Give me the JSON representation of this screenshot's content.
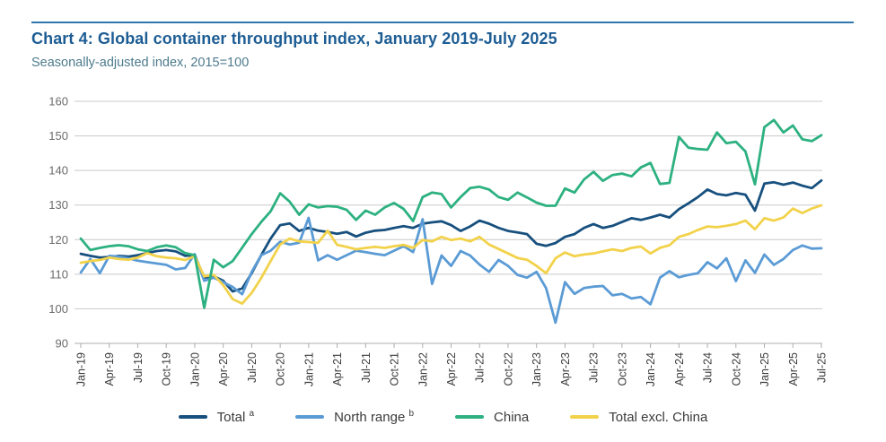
{
  "header": {
    "title": "Chart 4: Global container throughput index, January 2019-July 2025",
    "subtitle": "Seasonally-adjusted index, 2015=100"
  },
  "colors": {
    "title_text": "#1d5d94",
    "subtitle_text": "#4e7b8d",
    "top_rule": "#2f77ad",
    "grid_line": "#c9c9c9",
    "axis_line": "#adadad",
    "y_tick_text": "#6b6b6b",
    "x_tick_text": "#3c3c3c",
    "total": "#17507e",
    "north_range": "#5b9bd5",
    "china": "#2db181",
    "total_excl_china": "#f2d24b"
  },
  "chart_data": {
    "type": "line",
    "title": "Chart 4: Global container throughput index, January 2019-July 2025",
    "subtitle": "Seasonally-adjusted index, 2015=100",
    "x_unit": "monthly, Jan-2019 to Jul-2025",
    "x_tick_labels": [
      "Jan-19",
      "Apr-19",
      "Jul-19",
      "Oct-19",
      "Jan-20",
      "Apr-20",
      "Jul-20",
      "Oct-20",
      "Jan-21",
      "Apr-21",
      "Jul-21",
      "Oct-21",
      "Jan-22",
      "Apr-22",
      "Jul-22",
      "Oct-22",
      "Jan-23",
      "Apr-23",
      "Jul-23",
      "Oct-23",
      "Jan-24",
      "Apr-24",
      "Jul-24",
      "Oct-24",
      "Jan-25",
      "Apr-25",
      "Jul-25"
    ],
    "y_tick_labels": [
      90,
      100,
      110,
      120,
      130,
      140,
      150,
      160
    ],
    "ylim": [
      90,
      160
    ],
    "grid": "horizontal",
    "legend_position": "bottom",
    "series": [
      {
        "name": "Total",
        "sup": "a",
        "color": "#17507e",
        "values": [
          115.9,
          115.3,
          114.8,
          115.0,
          115.3,
          115.1,
          115.5,
          116.1,
          116.7,
          117.0,
          116.6,
          115.3,
          115.5,
          109.0,
          109.4,
          108.1,
          105.0,
          105.9,
          110.3,
          115.5,
          120.3,
          124.2,
          124.7,
          122.5,
          123.4,
          122.6,
          122.2,
          121.7,
          122.2,
          120.9,
          122.0,
          122.6,
          122.8,
          123.4,
          123.9,
          123.4,
          124.6,
          125.0,
          125.3,
          124.2,
          122.5,
          123.8,
          125.5,
          124.6,
          123.4,
          122.5,
          122.1,
          121.6,
          118.8,
          118.2,
          119.0,
          120.8,
          121.6,
          123.4,
          124.5,
          123.4,
          124.0,
          125.1,
          126.2,
          125.7,
          126.4,
          127.2,
          126.4,
          128.8,
          130.5,
          132.3,
          134.5,
          133.2,
          132.8,
          133.5,
          133.0,
          128.4,
          136.2,
          136.6,
          135.9,
          136.5,
          135.6,
          134.9,
          137.1
        ]
      },
      {
        "name": "North range",
        "sup": "b",
        "color": "#5b9bd5",
        "values": [
          110.5,
          114.4,
          110.3,
          115.3,
          115.1,
          114.6,
          113.9,
          113.5,
          113.1,
          112.7,
          111.4,
          111.8,
          115.8,
          108.1,
          109.0,
          107.7,
          106.3,
          104.2,
          110.7,
          115.5,
          116.8,
          119.4,
          118.6,
          119.1,
          126.3,
          114.0,
          115.5,
          114.2,
          115.5,
          116.8,
          116.4,
          115.9,
          115.5,
          116.8,
          118.1,
          116.4,
          125.9,
          107.2,
          115.4,
          112.4,
          116.7,
          115.4,
          112.8,
          110.7,
          114.1,
          112.4,
          109.8,
          109.0,
          110.7,
          106.0,
          96.0,
          107.7,
          104.3,
          106.0,
          106.4,
          106.6,
          103.9,
          104.3,
          103.0,
          103.4,
          101.3,
          109.0,
          110.9,
          109.1,
          109.8,
          110.3,
          113.5,
          111.7,
          114.6,
          108.0,
          114.0,
          110.4,
          115.7,
          112.7,
          114.4,
          117.0,
          118.3,
          117.4,
          117.5
        ]
      },
      {
        "name": "China",
        "sup": "",
        "color": "#2db181",
        "values": [
          120.3,
          117.0,
          117.6,
          118.1,
          118.4,
          118.1,
          117.2,
          116.7,
          117.8,
          118.3,
          117.8,
          116.1,
          115.5,
          100.3,
          114.2,
          112.0,
          113.8,
          117.7,
          121.6,
          125.1,
          128.2,
          133.4,
          131.0,
          127.2,
          130.2,
          129.3,
          129.7,
          129.5,
          128.6,
          125.7,
          128.4,
          127.2,
          129.3,
          130.6,
          128.9,
          125.4,
          132.3,
          133.6,
          133.2,
          129.3,
          132.3,
          134.9,
          135.3,
          134.5,
          132.3,
          131.5,
          133.6,
          132.2,
          130.7,
          129.8,
          129.8,
          134.8,
          133.6,
          137.4,
          139.6,
          137.0,
          138.7,
          139.1,
          138.3,
          140.9,
          142.2,
          136.1,
          136.4,
          149.7,
          146.6,
          146.2,
          146.0,
          151.0,
          147.9,
          148.3,
          145.5,
          136.0,
          152.5,
          154.6,
          151.0,
          153.0,
          149.0,
          148.5,
          150.2
        ]
      },
      {
        "name": "Total excl. China",
        "sup": "",
        "color": "#f2d24b",
        "values": [
          113.3,
          113.8,
          114.1,
          114.8,
          114.4,
          114.2,
          114.8,
          116.1,
          115.2,
          114.8,
          114.6,
          114.1,
          115.2,
          109.4,
          109.8,
          106.8,
          102.8,
          101.5,
          104.6,
          108.9,
          113.8,
          118.6,
          120.3,
          119.5,
          119.3,
          119.1,
          122.6,
          118.5,
          117.9,
          117.2,
          117.6,
          117.9,
          117.6,
          118.1,
          118.5,
          117.6,
          119.9,
          119.5,
          120.8,
          119.9,
          120.3,
          119.5,
          120.8,
          118.6,
          117.3,
          116.0,
          114.7,
          114.2,
          112.4,
          110.3,
          114.6,
          116.3,
          115.2,
          115.7,
          116.0,
          116.6,
          117.2,
          116.7,
          117.6,
          118.0,
          116.0,
          117.6,
          118.4,
          120.8,
          121.6,
          122.8,
          123.8,
          123.6,
          124.0,
          124.5,
          125.5,
          123.0,
          126.2,
          125.5,
          126.4,
          129.0,
          127.7,
          129.0,
          129.9
        ]
      }
    ]
  }
}
